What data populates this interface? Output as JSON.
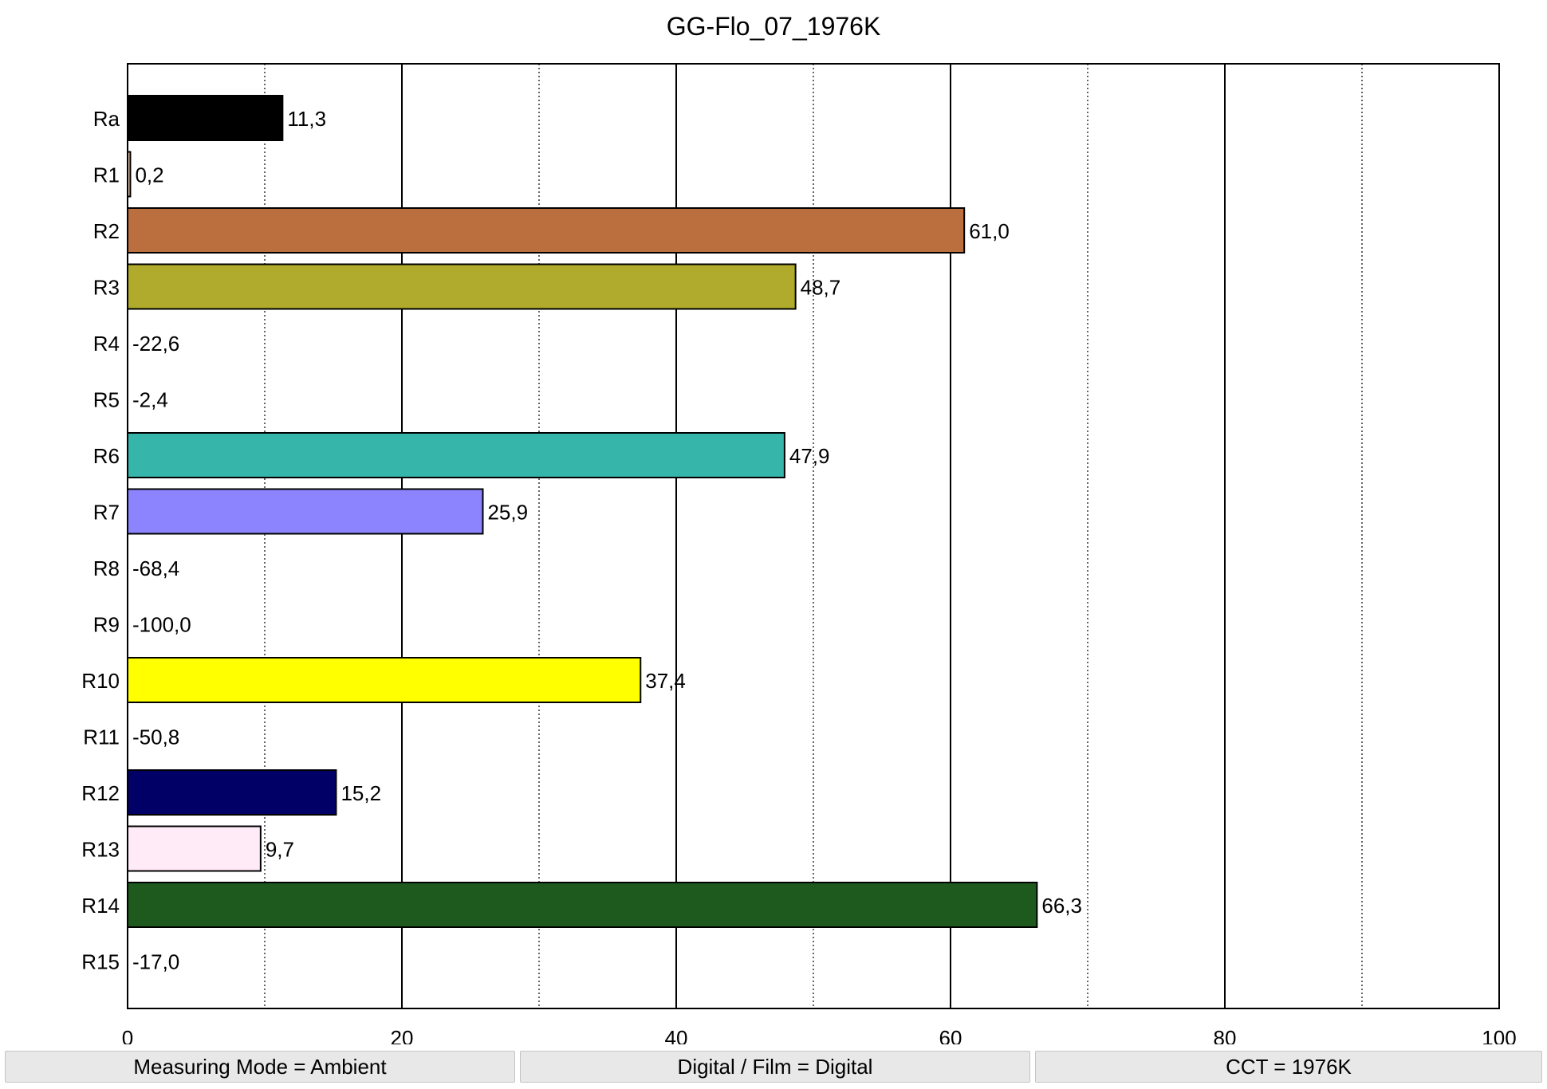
{
  "chart_data": {
    "type": "bar",
    "orientation": "horizontal",
    "title": "GG-Flo_07_1976K",
    "xlabel": "",
    "ylabel": "",
    "xlim": [
      0,
      100
    ],
    "x_ticks": [
      0,
      20,
      40,
      60,
      80,
      100
    ],
    "x_tick_labels": [
      "0",
      "20",
      "40",
      "60",
      "80",
      "100"
    ],
    "grid": "vertical lines every 10; solid at multiples of 20, dotted between",
    "legend": "none",
    "categories": [
      "Ra",
      "R1",
      "R2",
      "R3",
      "R4",
      "R5",
      "R6",
      "R7",
      "R8",
      "R9",
      "R10",
      "R11",
      "R12",
      "R13",
      "R14",
      "R15"
    ],
    "values": [
      11.3,
      0.2,
      61.0,
      48.7,
      -22.6,
      -2.4,
      47.9,
      25.9,
      -68.4,
      -100.0,
      37.4,
      -50.8,
      15.2,
      9.7,
      66.3,
      -17.0
    ],
    "value_labels": [
      "11,3",
      "0,2",
      "61,0",
      "48,7",
      "-22,6",
      "-2,4",
      "47,9",
      "25,9",
      "-68,4",
      "-100,0",
      "37,4",
      "-50,8",
      "15,2",
      "9,7",
      "66,3",
      "-17,0"
    ],
    "colors": [
      "#000000",
      "#f0c8b0",
      "#bb6e3e",
      "#b0ab2c",
      "#c8d04a",
      "#70c060",
      "#36b5aa",
      "#8c84ff",
      "#c060d0",
      "#e02020",
      "#ffff00",
      "#208040",
      "#000066",
      "#ffeaf8",
      "#1e5a1e",
      "#f0c8b0"
    ]
  },
  "footer": {
    "items": [
      "Measuring Mode = Ambient",
      "Digital / Film = Digital",
      "CCT = 1976K"
    ]
  }
}
